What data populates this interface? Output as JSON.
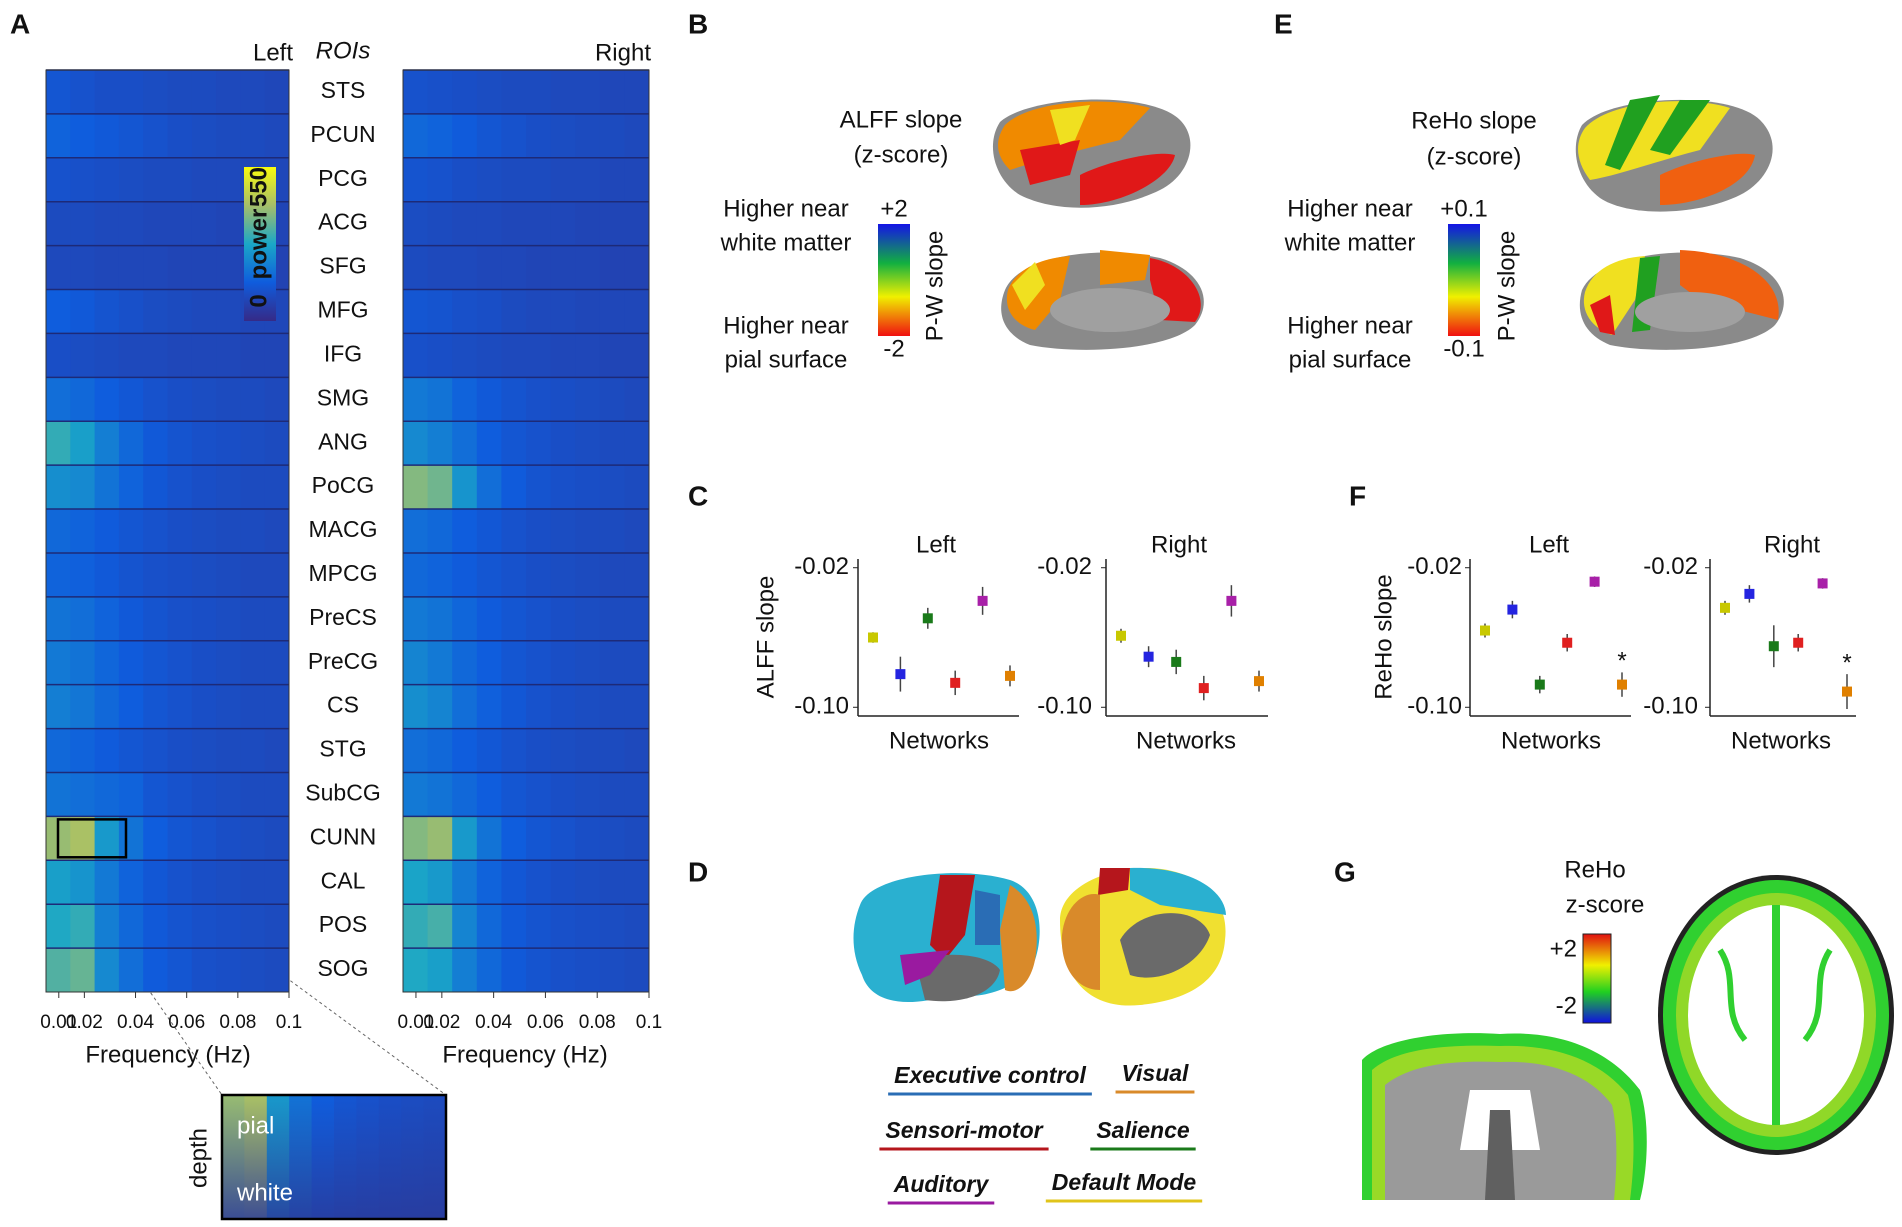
{
  "panel_labels": [
    "A",
    "B",
    "C",
    "D",
    "E",
    "F",
    "G"
  ],
  "chart_data": [
    {
      "type": "heatmap",
      "xlabel": "Frequency (Hz)",
      "ylabel": "ROIs",
      "categories": [
        "STS",
        "PCUN",
        "PCG",
        "ACG",
        "SFG",
        "MFG",
        "IFG",
        "SMG",
        "ANG",
        "PoCG",
        "MACG",
        "MPCG",
        "PreCS",
        "PreCG",
        "CS",
        "STG",
        "SubCG",
        "CUNN",
        "CAL",
        "POS",
        "SOG"
      ],
      "xlim": [
        0.005,
        0.1
      ],
      "xticks": [
        0.01,
        0.02,
        0.04,
        0.06,
        0.08,
        0.1
      ],
      "colorbar": {
        "label": "power",
        "ticks": [
          0,
          550
        ]
      },
      "series": [
        {
          "name": "Left",
          "values": [
            [
              120,
              110,
              100,
              100,
              95,
              90,
              90,
              85,
              85,
              80
            ],
            [
              150,
              140,
              130,
              120,
              110,
              100,
              95,
              90,
              90,
              85
            ],
            [
              110,
              105,
              100,
              95,
              90,
              90,
              85,
              85,
              80,
              80
            ],
            [
              90,
              90,
              85,
              85,
              80,
              80,
              80,
              75,
              75,
              75
            ],
            [
              85,
              85,
              80,
              80,
              80,
              75,
              75,
              75,
              70,
              70
            ],
            [
              140,
              130,
              115,
              105,
              95,
              90,
              85,
              85,
              80,
              80
            ],
            [
              100,
              95,
              90,
              85,
              85,
              80,
              80,
              80,
              75,
              75
            ],
            [
              170,
              160,
              140,
              125,
              110,
              100,
              95,
              90,
              90,
              85
            ],
            [
              300,
              260,
              200,
              160,
              130,
              115,
              105,
              100,
              95,
              90
            ],
            [
              230,
              220,
              180,
              150,
              125,
              110,
              100,
              95,
              90,
              90
            ],
            [
              160,
              150,
              135,
              120,
              110,
              100,
              95,
              90,
              90,
              85
            ],
            [
              150,
              145,
              130,
              115,
              105,
              100,
              95,
              90,
              85,
              85
            ],
            [
              180,
              170,
              150,
              130,
              115,
              105,
              100,
              95,
              90,
              90
            ],
            [
              190,
              180,
              155,
              135,
              120,
              110,
              100,
              95,
              90,
              90
            ],
            [
              200,
              185,
              160,
              140,
              120,
              110,
              100,
              95,
              90,
              90
            ],
            [
              160,
              150,
              135,
              120,
              110,
              100,
              95,
              90,
              90,
              85
            ],
            [
              180,
              170,
              160,
              150,
              120,
              110,
              100,
              95,
              90,
              90
            ],
            [
              400,
              420,
              250,
              180,
              140,
              120,
              110,
              100,
              95,
              90
            ],
            [
              260,
              240,
              190,
              150,
              125,
              110,
              100,
              95,
              90,
              90
            ],
            [
              280,
              300,
              200,
              160,
              130,
              115,
              105,
              100,
              95,
              90
            ],
            [
              330,
              350,
              220,
              170,
              135,
              120,
              105,
              100,
              95,
              90
            ]
          ]
        },
        {
          "name": "Right",
          "values": [
            [
              110,
              105,
              100,
              95,
              90,
              90,
              85,
              85,
              80,
              80
            ],
            [
              160,
              150,
              135,
              120,
              110,
              100,
              95,
              90,
              90,
              85
            ],
            [
              115,
              110,
              100,
              95,
              90,
              90,
              85,
              85,
              80,
              80
            ],
            [
              95,
              90,
              85,
              85,
              80,
              80,
              80,
              75,
              75,
              75
            ],
            [
              90,
              85,
              85,
              80,
              80,
              75,
              75,
              75,
              70,
              70
            ],
            [
              120,
              115,
              105,
              100,
              90,
              85,
              85,
              80,
              80,
              80
            ],
            [
              105,
              100,
              95,
              90,
              85,
              85,
              80,
              80,
              75,
              75
            ],
            [
              190,
              180,
              150,
              130,
              115,
              105,
              100,
              95,
              90,
              85
            ],
            [
              220,
              200,
              170,
              140,
              120,
              110,
              100,
              95,
              90,
              90
            ],
            [
              380,
              360,
              240,
              170,
              135,
              115,
              105,
              100,
              95,
              90
            ],
            [
              170,
              160,
              140,
              125,
              110,
              100,
              95,
              90,
              90,
              85
            ],
            [
              160,
              150,
              135,
              120,
              110,
              100,
              95,
              90,
              85,
              85
            ],
            [
              190,
              180,
              155,
              135,
              120,
              110,
              100,
              95,
              90,
              90
            ],
            [
              210,
              190,
              160,
              140,
              120,
              110,
              100,
              95,
              90,
              90
            ],
            [
              230,
              210,
              170,
              145,
              125,
              110,
              100,
              95,
              90,
              90
            ],
            [
              170,
              160,
              140,
              125,
              110,
              100,
              95,
              90,
              90,
              85
            ],
            [
              190,
              180,
              160,
              140,
              120,
              110,
              100,
              95,
              90,
              90
            ],
            [
              380,
              400,
              250,
              180,
              140,
              120,
              110,
              100,
              95,
              90
            ],
            [
              270,
              250,
              190,
              150,
              125,
              110,
              100,
              95,
              90,
              90
            ],
            [
              300,
              320,
              210,
              160,
              130,
              115,
              105,
              100,
              95,
              90
            ],
            [
              280,
              260,
              200,
              160,
              130,
              115,
              105,
              100,
              95,
              90
            ]
          ]
        }
      ],
      "inset": {
        "ylabel": "depth",
        "top_label": "pial",
        "bottom_label": "white"
      }
    },
    {
      "type": "scatter",
      "title": "Left",
      "xlabel": "Networks",
      "ylabel": "ALFF slope",
      "ylim": [
        -0.105,
        -0.015
      ],
      "yticks": [
        {
          "value": -0.02,
          "label": "-0.02"
        },
        {
          "value": -0.1,
          "label": "-0.10"
        }
      ],
      "values": [
        -0.06,
        -0.081,
        -0.049,
        -0.086,
        -0.039,
        -0.082
      ],
      "errors": [
        0.003,
        0.01,
        0.006,
        0.007,
        0.008,
        0.006
      ],
      "colors": [
        "#c8c800",
        "#2424e0",
        "#1a7a1a",
        "#e02020",
        "#a820a8",
        "#e08000"
      ]
    },
    {
      "type": "scatter",
      "title": "Right",
      "xlabel": "Networks",
      "ylim": [
        -0.105,
        -0.015
      ],
      "yticks": [
        {
          "value": -0.02,
          "label": "-0.02"
        },
        {
          "value": -0.1,
          "label": "-0.10"
        }
      ],
      "values": [
        -0.059,
        -0.071,
        -0.074,
        -0.089,
        -0.039,
        -0.085
      ],
      "errors": [
        0.004,
        0.006,
        0.007,
        0.007,
        0.009,
        0.006
      ],
      "colors": [
        "#c8c800",
        "#2424e0",
        "#1a7a1a",
        "#e02020",
        "#a820a8",
        "#e08000"
      ]
    },
    {
      "type": "scatter",
      "title": "Left",
      "xlabel": "Networks",
      "ylabel": "ReHo slope",
      "ylim": [
        -0.105,
        -0.015
      ],
      "yticks": [
        {
          "value": -0.02,
          "label": "-0.02"
        },
        {
          "value": -0.1,
          "label": "-0.10"
        }
      ],
      "values": [
        -0.056,
        -0.044,
        -0.087,
        -0.063,
        -0.028,
        -0.087
      ],
      "errors": [
        0.004,
        0.005,
        0.005,
        0.005,
        0.003,
        0.007
      ],
      "colors": [
        "#c8c800",
        "#2424e0",
        "#1a7a1a",
        "#e02020",
        "#a820a8",
        "#e08000"
      ],
      "annotation": "*"
    },
    {
      "type": "scatter",
      "title": "Right",
      "xlabel": "Networks",
      "ylim": [
        -0.105,
        -0.015
      ],
      "yticks": [
        {
          "value": -0.02,
          "label": "-0.02"
        },
        {
          "value": -0.1,
          "label": "-0.10"
        }
      ],
      "values": [
        -0.043,
        -0.035,
        -0.065,
        -0.063,
        -0.029,
        -0.091
      ],
      "errors": [
        0.004,
        0.005,
        0.012,
        0.005,
        0.003,
        0.01
      ],
      "colors": [
        "#c8c800",
        "#2424e0",
        "#1a7a1a",
        "#e02020",
        "#a820a8",
        "#e08000"
      ],
      "annotation": "*"
    }
  ],
  "panel_b": {
    "title": "ALFF slope",
    "subtitle": "(z-score)",
    "top_text": [
      "Higher near",
      "white matter"
    ],
    "bottom_text": [
      "Higher near",
      "pial surface"
    ],
    "colorbar": {
      "label": "P-W slope",
      "ticks": [
        {
          "value": 2,
          "label": "+2"
        },
        -2
      ]
    }
  },
  "panel_e": {
    "title": "ReHo slope",
    "subtitle": "(z-score)",
    "top_text": [
      "Higher near",
      "white matter"
    ],
    "bottom_text": [
      "Higher near",
      "pial surface"
    ],
    "colorbar": {
      "label": "P-W slope",
      "ticks": [
        {
          "value": 0.1,
          "label": "+0.1"
        },
        -0.1
      ]
    }
  },
  "panel_d": {
    "legend": [
      {
        "name": "Executive control",
        "color": "#2a6db5"
      },
      {
        "name": "Visual",
        "color": "#d98a2a"
      },
      {
        "name": "Sensori-motor",
        "color": "#b5161c"
      },
      {
        "name": "Salience",
        "color": "#1a7a1a"
      },
      {
        "name": "Auditory",
        "color": "#9a1aa0"
      },
      {
        "name": "Default Mode",
        "color": "#e0c41a"
      }
    ]
  },
  "panel_g": {
    "title": "ReHo",
    "subtitle": "z-score",
    "colorbar": {
      "ticks": [
        {
          "value": 2,
          "label": "+2"
        },
        -2
      ]
    }
  }
}
